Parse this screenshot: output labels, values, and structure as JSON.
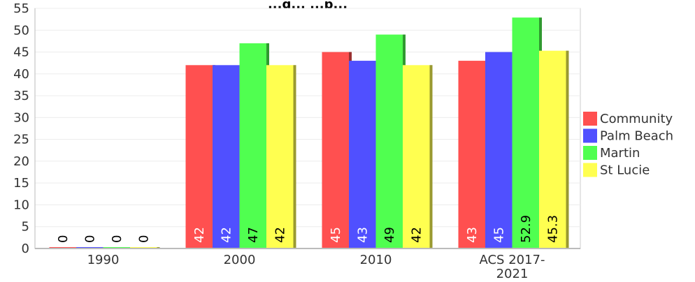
{
  "chart_data": {
    "type": "bar",
    "title": "",
    "title_partial": "...g... ...p...",
    "xlabel": "",
    "ylabel": "",
    "categories": [
      "1990",
      "2000",
      "2010",
      "ACS 2017-2021"
    ],
    "category_labels": [
      [
        "1990"
      ],
      [
        "2000"
      ],
      [
        "2010"
      ],
      [
        "ACS 2017-",
        "2021"
      ]
    ],
    "ylim": [
      0,
      55
    ],
    "yticks": [
      0,
      5,
      10,
      15,
      20,
      25,
      30,
      35,
      40,
      45,
      50,
      55
    ],
    "grid": true,
    "legend_position": "right",
    "series": [
      {
        "name": "Community",
        "color": "#ff5050",
        "values": [
          0,
          42,
          45,
          43
        ],
        "labels": [
          "0",
          "42",
          "45",
          "43"
        ],
        "label_color": "#ffffff"
      },
      {
        "name": "Palm Beach",
        "color": "#5050ff",
        "values": [
          0,
          42,
          43,
          45
        ],
        "labels": [
          "0",
          "42",
          "43",
          "45"
        ],
        "label_color": "#ffffff"
      },
      {
        "name": "Martin",
        "color": "#50ff50",
        "values": [
          0,
          47,
          49,
          52.9
        ],
        "labels": [
          "0",
          "47",
          "49",
          "52.9"
        ],
        "label_color": "#000000"
      },
      {
        "name": "St Lucie",
        "color": "#ffff50",
        "values": [
          0,
          42,
          42,
          45.3
        ],
        "labels": [
          "0",
          "42",
          "42",
          "45.3"
        ],
        "label_color": "#000000"
      }
    ]
  }
}
